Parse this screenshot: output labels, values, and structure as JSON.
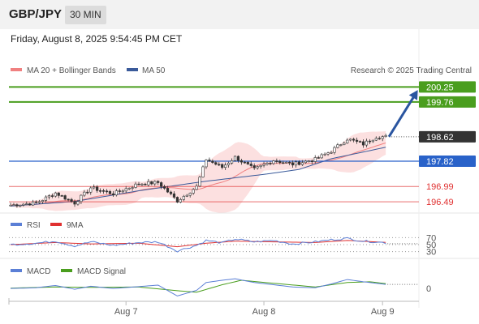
{
  "header": {
    "pair": "GBP/JPY",
    "timeframe": "30 MIN"
  },
  "datetime": "Friday, August 8, 2025 9:54:45 PM CET",
  "legend": {
    "ma20": "MA 20 + Bollinger Bands",
    "ma50": "MA 50",
    "credit": "Research © 2025 Trading Central"
  },
  "rsi_legend": {
    "rsi": "RSI",
    "ma": "9MA"
  },
  "macd_legend": {
    "macd": "MACD",
    "signal": "MACD Signal"
  },
  "colors": {
    "green": "#4a9e1e",
    "blue": "#2962c9",
    "red": "#e03030",
    "ma20": "#f08080",
    "ma50": "#3a5a9a",
    "candle": "#333333",
    "arrow": "#2a55a0"
  },
  "chart_data": [
    {
      "type": "candlestick",
      "ylim": [
        196.2,
        200.5
      ],
      "x_tick_labels": [
        "Aug 7",
        "Aug 8",
        "Aug 9"
      ],
      "x_tick_index": [
        36,
        79,
        116
      ],
      "count": 118,
      "current_price": 198.62,
      "levels": [
        {
          "value": 200.25,
          "label": "200.25",
          "kind": "resistance"
        },
        {
          "value": 199.76,
          "label": "199.76",
          "kind": "resistance"
        },
        {
          "value": 198.62,
          "label": "198.62",
          "kind": "current"
        },
        {
          "value": 197.82,
          "label": "197.82",
          "kind": "pivot"
        },
        {
          "value": 196.99,
          "label": "196.99",
          "kind": "support"
        },
        {
          "value": 196.49,
          "label": "196.49",
          "kind": "support"
        }
      ],
      "arrow": {
        "from": {
          "index": 118,
          "value": 198.62
        },
        "to": {
          "index": 127,
          "value": 200.15
        }
      },
      "anchors": [
        [
          0,
          196.38
        ],
        [
          8,
          196.45
        ],
        [
          14,
          196.78
        ],
        [
          20,
          196.45
        ],
        [
          25,
          196.95
        ],
        [
          32,
          196.75
        ],
        [
          40,
          197.08
        ],
        [
          46,
          197.12
        ],
        [
          52,
          196.52
        ],
        [
          58,
          196.98
        ],
        [
          61,
          197.88
        ],
        [
          66,
          197.62
        ],
        [
          70,
          197.95
        ],
        [
          76,
          197.55
        ],
        [
          82,
          197.85
        ],
        [
          88,
          197.72
        ],
        [
          95,
          197.88
        ],
        [
          100,
          198.15
        ],
        [
          105,
          198.55
        ],
        [
          110,
          198.38
        ],
        [
          114,
          198.62
        ],
        [
          118,
          198.62
        ]
      ],
      "ma50_anchors": [
        [
          0,
          196.35
        ],
        [
          20,
          196.5
        ],
        [
          40,
          196.85
        ],
        [
          60,
          197.15
        ],
        [
          80,
          197.4
        ],
        [
          90,
          197.55
        ],
        [
          100,
          197.9
        ],
        [
          110,
          198.12
        ],
        [
          118,
          198.3
        ]
      ]
    },
    {
      "type": "line",
      "name_series": [
        "RSI",
        "9MA"
      ],
      "ylim": [
        22,
        78
      ],
      "y_ticks": [
        70,
        50,
        30
      ],
      "rsi_anchors": [
        [
          0,
          50
        ],
        [
          8,
          54
        ],
        [
          14,
          60
        ],
        [
          20,
          46
        ],
        [
          25,
          58
        ],
        [
          32,
          48
        ],
        [
          40,
          56
        ],
        [
          46,
          58
        ],
        [
          52,
          32
        ],
        [
          58,
          48
        ],
        [
          61,
          62
        ],
        [
          66,
          55
        ],
        [
          70,
          66
        ],
        [
          76,
          58
        ],
        [
          82,
          62
        ],
        [
          88,
          52
        ],
        [
          95,
          58
        ],
        [
          100,
          64
        ],
        [
          105,
          68
        ],
        [
          110,
          60
        ],
        [
          114,
          58
        ],
        [
          118,
          54
        ]
      ],
      "ma_anchors": [
        [
          0,
          50
        ],
        [
          14,
          56
        ],
        [
          25,
          52
        ],
        [
          40,
          54
        ],
        [
          52,
          44
        ],
        [
          61,
          54
        ],
        [
          70,
          60
        ],
        [
          82,
          58
        ],
        [
          95,
          56
        ],
        [
          105,
          62
        ],
        [
          118,
          56
        ]
      ]
    },
    {
      "type": "line",
      "name_series": [
        "MACD",
        "MACD Signal"
      ],
      "ylim": [
        -0.3,
        0.35
      ],
      "y_ticks": [
        0
      ],
      "macd_anchors": [
        [
          0,
          0.0
        ],
        [
          8,
          0.02
        ],
        [
          14,
          0.08
        ],
        [
          20,
          -0.02
        ],
        [
          25,
          0.06
        ],
        [
          32,
          0.0
        ],
        [
          40,
          0.05
        ],
        [
          46,
          0.09
        ],
        [
          52,
          -0.2
        ],
        [
          58,
          -0.05
        ],
        [
          61,
          0.16
        ],
        [
          66,
          0.22
        ],
        [
          70,
          0.26
        ],
        [
          76,
          0.16
        ],
        [
          82,
          0.1
        ],
        [
          88,
          0.04
        ],
        [
          95,
          0.02
        ],
        [
          100,
          0.12
        ],
        [
          105,
          0.24
        ],
        [
          110,
          0.18
        ],
        [
          114,
          0.14
        ],
        [
          118,
          0.1
        ]
      ],
      "signal_anchors": [
        [
          0,
          0.01
        ],
        [
          14,
          0.04
        ],
        [
          25,
          0.03
        ],
        [
          40,
          0.04
        ],
        [
          52,
          -0.06
        ],
        [
          58,
          -0.1
        ],
        [
          66,
          0.1
        ],
        [
          72,
          0.22
        ],
        [
          82,
          0.14
        ],
        [
          95,
          0.04
        ],
        [
          105,
          0.16
        ],
        [
          112,
          0.18
        ],
        [
          118,
          0.12
        ]
      ]
    }
  ]
}
